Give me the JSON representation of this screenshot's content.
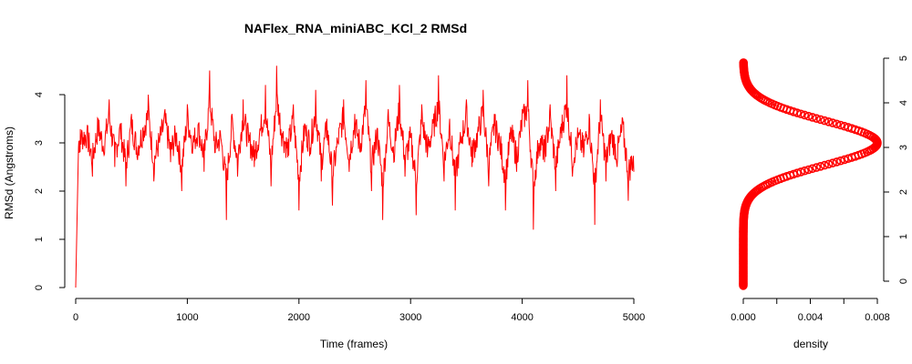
{
  "chart_data": [
    {
      "type": "line",
      "title": "NAFlex_RNA_miniABC_KCl_2 RMSd",
      "xlabel": "Time (frames)",
      "ylabel": "RMSd (Angstroms)",
      "xlim": [
        0,
        5000
      ],
      "ylim": [
        0,
        4.6
      ],
      "x_ticks": [
        "0",
        "1000",
        "2000",
        "3000",
        "4000",
        "5000"
      ],
      "y_ticks": [
        "0",
        "1",
        "2",
        "3",
        "4"
      ],
      "grid": false,
      "series": [
        {
          "color": "#ff0000",
          "x": [
            0,
            25,
            50,
            100,
            150,
            200,
            250,
            300,
            350,
            400,
            450,
            500,
            550,
            600,
            650,
            700,
            750,
            800,
            850,
            900,
            950,
            1000,
            1050,
            1100,
            1150,
            1200,
            1250,
            1300,
            1350,
            1400,
            1450,
            1500,
            1550,
            1600,
            1650,
            1700,
            1750,
            1800,
            1850,
            1900,
            1950,
            2000,
            2050,
            2100,
            2150,
            2200,
            2250,
            2300,
            2350,
            2400,
            2450,
            2500,
            2550,
            2600,
            2650,
            2700,
            2750,
            2800,
            2850,
            2900,
            2950,
            3000,
            3050,
            3100,
            3150,
            3200,
            3250,
            3300,
            3350,
            3400,
            3450,
            3500,
            3550,
            3600,
            3650,
            3700,
            3750,
            3800,
            3850,
            3900,
            3950,
            4000,
            4050,
            4100,
            4150,
            4200,
            4250,
            4300,
            4350,
            4400,
            4450,
            4500,
            4550,
            4600,
            4650,
            4700,
            4750,
            4800,
            4850,
            4900,
            4950,
            5000
          ],
          "values": [
            0.0,
            2.9,
            3.1,
            3.2,
            2.3,
            3.5,
            2.8,
            3.9,
            2.5,
            3.4,
            2.1,
            3.6,
            2.7,
            3.3,
            4.0,
            2.2,
            3.0,
            3.7,
            2.6,
            3.2,
            2.0,
            3.8,
            2.9,
            3.4,
            2.4,
            4.5,
            2.8,
            3.1,
            1.4,
            3.6,
            2.3,
            3.9,
            3.0,
            2.5,
            3.3,
            4.2,
            2.1,
            4.6,
            3.2,
            2.7,
            3.8,
            1.6,
            3.4,
            2.9,
            4.1,
            2.2,
            3.5,
            1.7,
            3.0,
            3.9,
            2.4,
            3.6,
            2.8,
            4.3,
            2.0,
            3.3,
            1.4,
            3.7,
            2.6,
            4.2,
            2.3,
            3.1,
            1.5,
            3.8,
            2.7,
            3.4,
            4.4,
            2.2,
            3.5,
            1.6,
            3.0,
            3.9,
            2.5,
            3.2,
            4.1,
            2.1,
            3.6,
            2.9,
            1.6,
            3.3,
            2.4,
            3.7,
            4.3,
            1.2,
            3.0,
            2.6,
            3.8,
            2.0,
            3.4,
            4.4,
            2.3,
            3.1,
            2.7,
            3.6,
            1.3,
            3.9,
            2.2,
            3.2,
            2.5,
            3.5,
            1.8,
            2.4
          ]
        }
      ]
    },
    {
      "type": "line",
      "xlabel": "density",
      "xlim": [
        0,
        0.008
      ],
      "ylim": [
        0,
        4.6
      ],
      "x_ticks": [
        "0.000",
        "0.004",
        "0.008"
      ],
      "y_ticks": [
        "0",
        "1",
        "2",
        "3",
        "4",
        "5"
      ],
      "grid": false,
      "series": [
        {
          "color": "#ff0000",
          "marker": "circle",
          "peak_rmsd": 3.1,
          "peak_density": 0.008,
          "spread": 0.5,
          "range": [
            -0.1,
            4.9
          ]
        }
      ]
    }
  ]
}
